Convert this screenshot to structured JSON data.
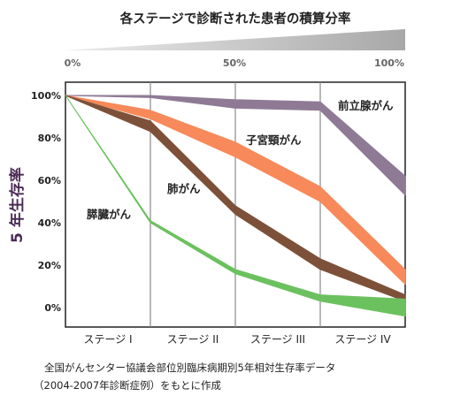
{
  "header": {
    "title": "各ステージで診断された患者の積算分率",
    "scale_ticks": [
      "0%",
      "50%",
      "100%"
    ]
  },
  "chart_data": {
    "type": "area",
    "ylabel": "5 年生存率",
    "categories": [
      "ステージ I",
      "ステージ II",
      "ステージ III",
      "ステージ IV"
    ],
    "x_cumulative_fraction": [
      0,
      0.25,
      0.5,
      0.75,
      1.0
    ],
    "y_ticks": [
      "100%",
      "80%",
      "60%",
      "40%",
      "20%",
      "0%"
    ],
    "ylim": [
      0,
      100
    ],
    "grid": "vertical stage separators",
    "series": [
      {
        "name": "前立腺がん",
        "color": "#8f7a96",
        "points": [
          {
            "x": 0.0,
            "upper": 100,
            "lower": 100
          },
          {
            "x": 0.25,
            "upper": 100,
            "lower": 99
          },
          {
            "x": 0.5,
            "upper": 98,
            "lower": 94
          },
          {
            "x": 0.75,
            "upper": 97,
            "lower": 93
          },
          {
            "x": 1.0,
            "upper": 62,
            "lower": 53
          }
        ]
      },
      {
        "name": "子宮頸がん",
        "color": "#f7895a",
        "points": [
          {
            "x": 0.0,
            "upper": 100,
            "lower": 100
          },
          {
            "x": 0.25,
            "upper": 93,
            "lower": 89
          },
          {
            "x": 0.5,
            "upper": 78,
            "lower": 71
          },
          {
            "x": 0.75,
            "upper": 57,
            "lower": 50
          },
          {
            "x": 1.0,
            "upper": 18,
            "lower": 11
          }
        ]
      },
      {
        "name": "肺がん",
        "color": "#7d5139",
        "points": [
          {
            "x": 0.0,
            "upper": 100,
            "lower": 100
          },
          {
            "x": 0.25,
            "upper": 88,
            "lower": 83
          },
          {
            "x": 0.5,
            "upper": 48,
            "lower": 44
          },
          {
            "x": 0.75,
            "upper": 23,
            "lower": 18
          },
          {
            "x": 1.0,
            "upper": 6,
            "lower": 3
          }
        ]
      },
      {
        "name": "膵臓がん",
        "color": "#6cc15f",
        "points": [
          {
            "x": 0.0,
            "upper": 100,
            "lower": 100
          },
          {
            "x": 0.25,
            "upper": 41,
            "lower": 40
          },
          {
            "x": 0.5,
            "upper": 18,
            "lower": 16
          },
          {
            "x": 0.75,
            "upper": 6,
            "lower": 3
          },
          {
            "x": 1.0,
            "upper": 4,
            "lower": -4
          }
        ]
      }
    ]
  },
  "footer": {
    "line1": "全国がんセンター協議会部位別臨床病期別5年相対生存率データ",
    "line2": "（2004-2007年診断症例）をもとに作成"
  }
}
